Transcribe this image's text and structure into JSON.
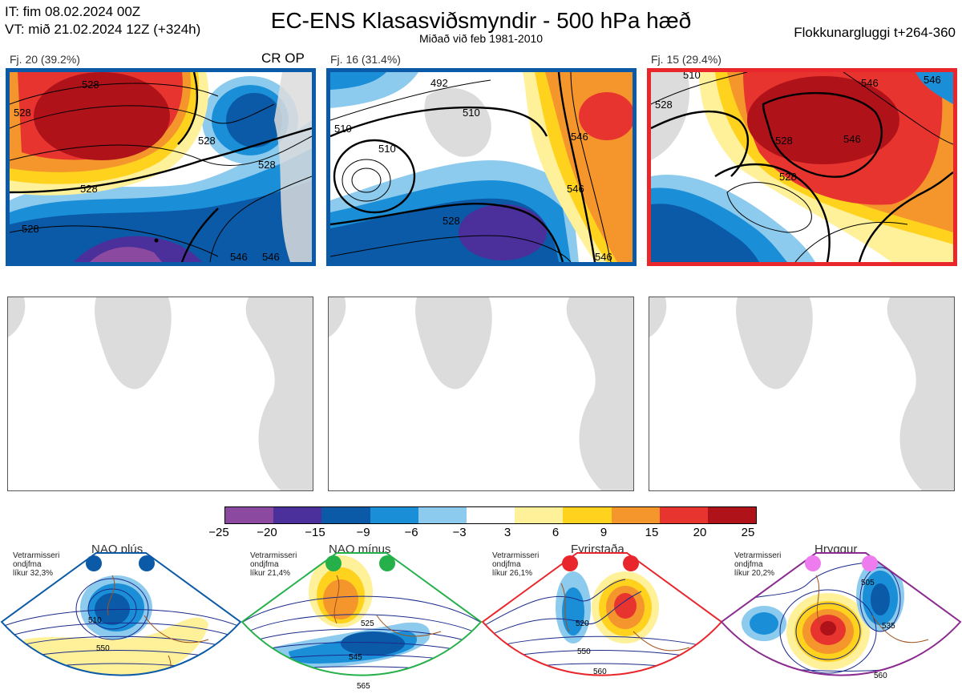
{
  "header": {
    "line1": "IT: fim 08.02.2024 00Z",
    "line2": "VT: mið 21.02.2024 12Z  (+324h)",
    "title": "EC-ENS Klasasviðsmyndir - 500 hPa hæð",
    "subtitle": "Miðað við feb 1981-2010",
    "window": "Flokkunargluggi t+264-360"
  },
  "panels": [
    {
      "label": "Fj. 20 (39.2%)",
      "badge": "CR OP",
      "border_color": "#0a5aa8",
      "contours": [
        "528",
        "528",
        "528",
        "528",
        "528",
        "528",
        "546",
        "546"
      ]
    },
    {
      "label": "Fj. 16 (31.4%)",
      "badge": "",
      "border_color": "#0a5aa8",
      "contours": [
        "492",
        "510",
        "510",
        "510",
        "528",
        "546",
        "546",
        "546"
      ]
    },
    {
      "label": "Fj. 15 (29.4%)",
      "badge": "",
      "border_color": "#e8262b",
      "contours": [
        "510",
        "528",
        "528",
        "528",
        "546",
        "546",
        "546"
      ]
    }
  ],
  "colorbar": {
    "ticks": [
      "−25",
      "−20",
      "−15",
      "−9",
      "−6",
      "−3",
      "3",
      "6",
      "9",
      "15",
      "20",
      "25"
    ],
    "colors": [
      "#8b4aa0",
      "#4b2f9a",
      "#0a5aa8",
      "#1a8fd8",
      "#8dcbee",
      "#ffffff",
      "#fff09a",
      "#ffd21e",
      "#f5962d",
      "#e8342e",
      "#b0121a"
    ]
  },
  "regimes": [
    {
      "name": "NAO plús",
      "note": [
        "Vetrarmisseri",
        "ondjfma",
        "líkur 32,3%"
      ],
      "dot_color": "#0a5aa8",
      "frame_color": "#0a5aa8",
      "contours": [
        "510",
        "550"
      ]
    },
    {
      "name": "NAO mínus",
      "note": [
        "Vetrarmisseri",
        "ondjfma",
        "líkur 21,4%"
      ],
      "dot_color": "#25b04a",
      "frame_color": "#25b04a",
      "contours": [
        "525",
        "545",
        "565"
      ]
    },
    {
      "name": "Fyrirstaða",
      "note": [
        "Vetrarmisseri",
        "ondjfma",
        "líkur 26,1%"
      ],
      "dot_color": "#e8262b",
      "frame_color": "#e8262b",
      "contours": [
        "520",
        "550",
        "560"
      ]
    },
    {
      "name": "Hryggur",
      "note": [
        "Vetrarmisseri",
        "ondjfma",
        "líkur 20,2%"
      ],
      "dot_color": "#ee7cee",
      "frame_color": "#8b2a8f",
      "contours": [
        "505",
        "535",
        "560"
      ]
    }
  ]
}
